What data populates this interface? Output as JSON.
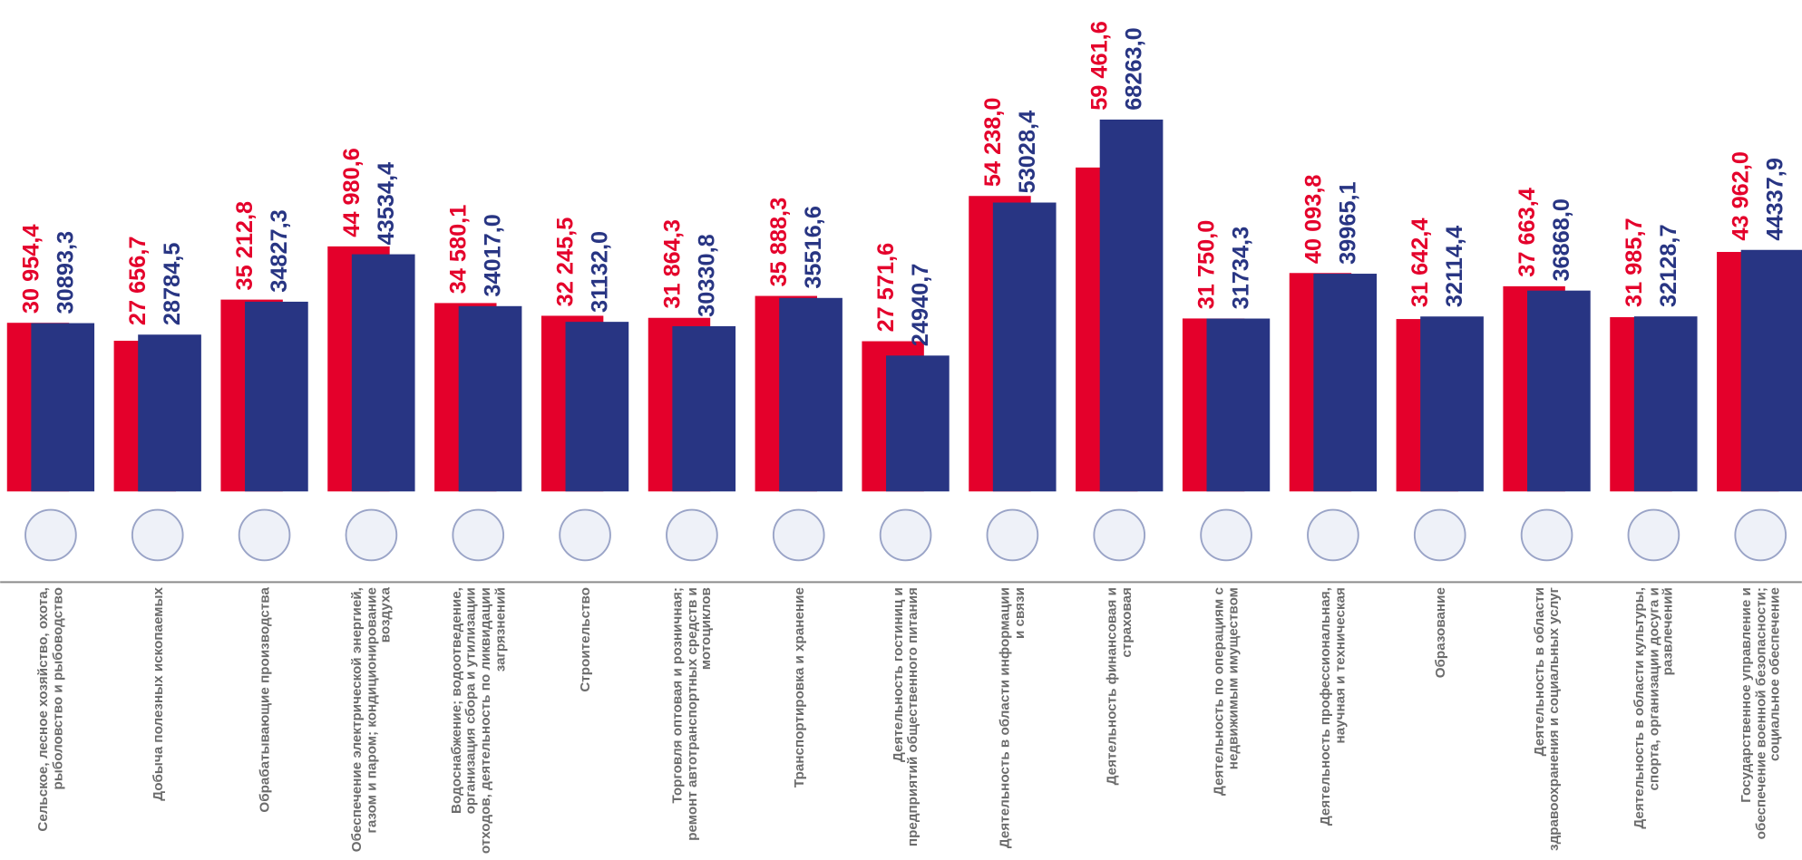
{
  "chart_data": {
    "type": "bar",
    "categories": [
      "Сельское, лесное хозяйство, охота, рыболовство и рыбоводство",
      "Добыча полезных ископаемых",
      "Обрабатывающие производства",
      "Обеспечение электрической энергией, газом и паром; кондиционирование воздуха",
      "Водоснабжение; водоотведение, организация сбора и утилизации отходов, деятельность по ликвидации загрязнений",
      "Строительство",
      "Торговля оптовая и розничная; ремонт автотранспортных средств и мотоциклов",
      "Транспортировка и хранение",
      "Деятельность гостиниц и предприятий общественного питания",
      "Деятельность в области информации и связи",
      "Деятельность финансовая и страховая",
      "Деятельность по операциям с недвижимым имуществом",
      "Деятельность профессиональная, научная и техническая",
      "Образование",
      "Деятельность в области здравоохранения и социальных услуг",
      "Деятельность в области культуры, спорта, организации досуга и развлечений",
      "Государственное управление и обеспечение военной безопасности; социальное обеспечение"
    ],
    "series": [
      {
        "color": "#e4002b",
        "values": [
          30954.4,
          27656.7,
          35212.8,
          44980.6,
          34580.1,
          32245.5,
          31864.3,
          35888.3,
          27571.6,
          54238.0,
          59461.6,
          31750.0,
          40093.8,
          31642.4,
          37663.4,
          31985.7,
          43962.0
        ],
        "value_labels": [
          "30 954,4",
          "27 656,7",
          "35 212,8",
          "44 980,6",
          "34 580,1",
          "32 245,5",
          "31 864,3",
          "35 888,3",
          "27 571,6",
          "54 238,0",
          "59 461,6",
          "31 750,0",
          "40 093,8",
          "31 642,4",
          "37 663,4",
          "31 985,7",
          "43 962,0"
        ]
      },
      {
        "color": "#283583",
        "values": [
          30893.3,
          28784.5,
          34827.3,
          43534.4,
          34017.0,
          31132.0,
          30330.8,
          35516.6,
          24940.7,
          53028.4,
          68263.0,
          31734.3,
          39965.1,
          32114.4,
          36868.0,
          32128.7,
          44337.9
        ],
        "value_labels": [
          "30893,3",
          "28784,5",
          "34827,3",
          "43534,4",
          "34017,0",
          "31132,0",
          "30330,8",
          "35516,6",
          "24940,7",
          "53028,4",
          "68263,0",
          "31734,3",
          "39965,1",
          "32114,4",
          "36868,0",
          "32128,7",
          "44337,9"
        ]
      }
    ],
    "ylim": [
      0,
      90000
    ]
  }
}
